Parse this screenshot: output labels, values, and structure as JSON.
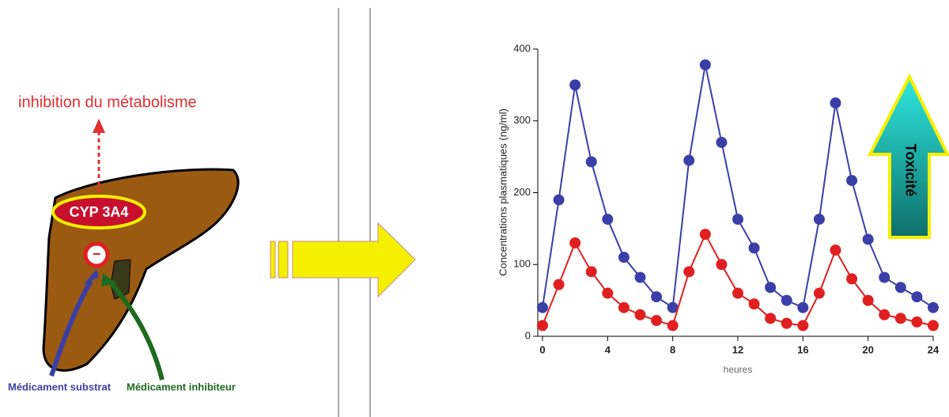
{
  "diagram": {
    "annotation": "inhibition du métabolisme",
    "enzyme": "CYP 3A4",
    "inhibition_sign": "−",
    "substrate_label": "Médicament substrat",
    "inhibitor_label": "Médicament inhibiteur",
    "toxicity_label": "Toxicité"
  },
  "chart_data": {
    "type": "line",
    "x_label": "heures",
    "y_label": "Concentrations plasmatiques (ng/ml)",
    "x": [
      0,
      1,
      2,
      3,
      4,
      5,
      6,
      7,
      8,
      9,
      10,
      11,
      12,
      13,
      14,
      15,
      16,
      17,
      18,
      19,
      20,
      21,
      22,
      23,
      24
    ],
    "series": [
      {
        "color": "#3a3fa8",
        "values": [
          40,
          190,
          350,
          243,
          163,
          110,
          82,
          55,
          40,
          245,
          378,
          270,
          163,
          123,
          68,
          50,
          40,
          163,
          325,
          217,
          135,
          82,
          68,
          55,
          40
        ]
      },
      {
        "color": "#e02020",
        "values": [
          15,
          72,
          130,
          90,
          60,
          40,
          30,
          22,
          15,
          90,
          142,
          100,
          60,
          45,
          25,
          18,
          15,
          60,
          120,
          80,
          50,
          30,
          25,
          20,
          15
        ]
      }
    ],
    "xlim": [
      0,
      24
    ],
    "xticks": [
      0,
      4,
      8,
      12,
      16,
      20,
      24
    ],
    "ylim": [
      0,
      400
    ],
    "yticks": [
      0,
      100,
      200,
      300,
      400
    ]
  }
}
